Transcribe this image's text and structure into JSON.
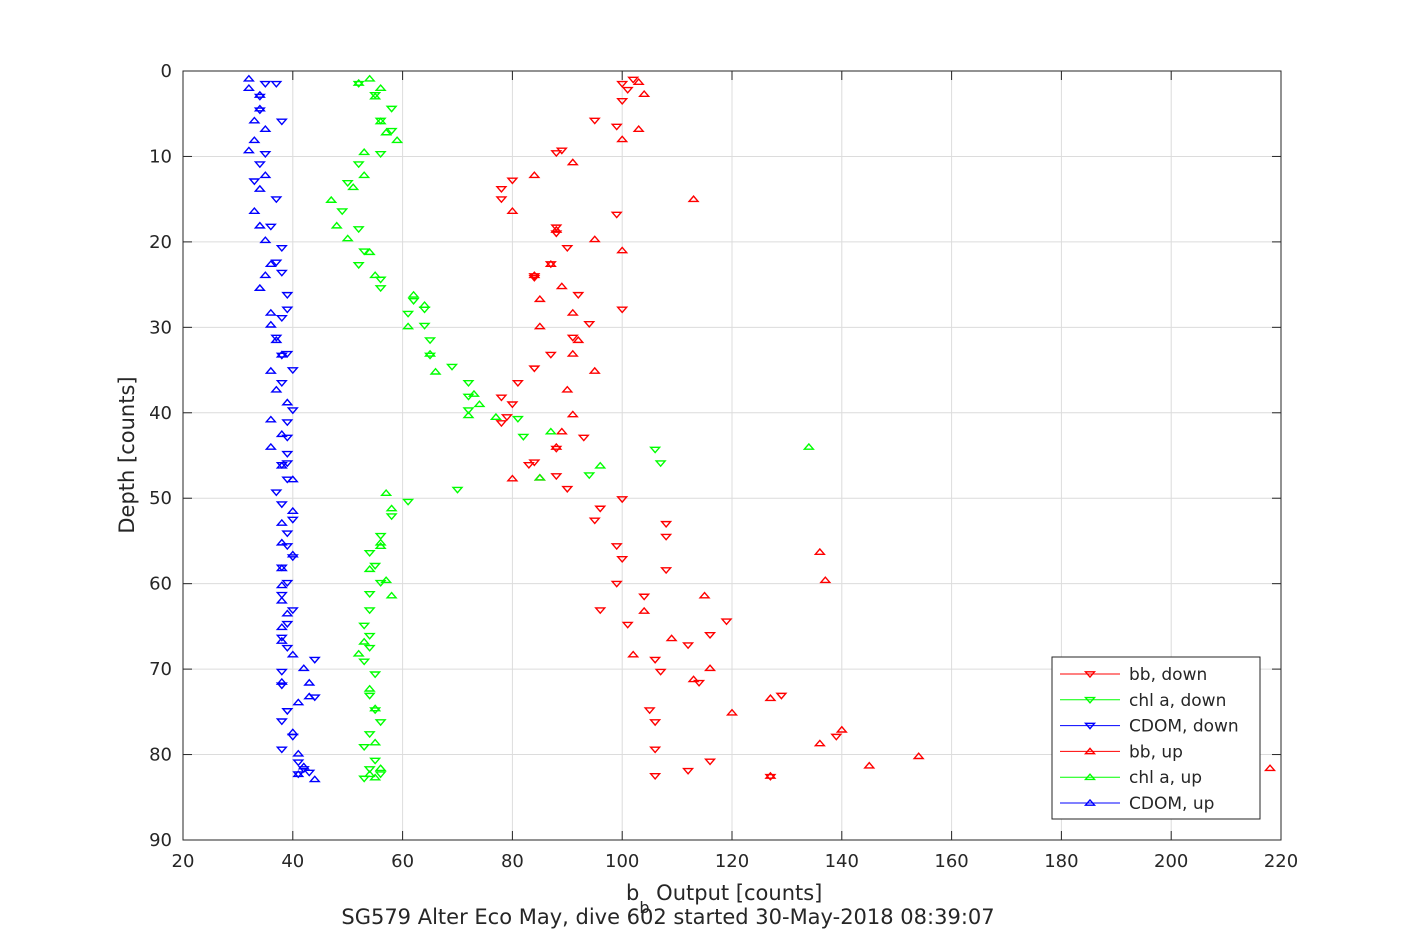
{
  "chart_data": {
    "type": "scatter",
    "xlabel_main": "b",
    "xlabel_sub": "b",
    "xlabel_rest": " Output [counts]",
    "ylabel": "Depth [counts]",
    "caption": "SG579 Alter Eco May, dive 602 started 30-May-2018 08:39:07",
    "xlim": [
      20,
      220
    ],
    "ylim": [
      0,
      90
    ],
    "y_reversed": true,
    "grid": true,
    "xticks": [
      "20",
      "40",
      "60",
      "80",
      "100",
      "120",
      "140",
      "160",
      "180",
      "200",
      "220"
    ],
    "yticks": [
      "0",
      "10",
      "20",
      "30",
      "40",
      "50",
      "60",
      "70",
      "80",
      "90"
    ],
    "legend_position": "bottom-right",
    "series": [
      {
        "name": "bb, down",
        "color": "#ff0000",
        "marker": "down",
        "points": [
          [
            100,
            1.5
          ],
          [
            102,
            1
          ],
          [
            101,
            2.2
          ],
          [
            100,
            3.5
          ],
          [
            99,
            6.5
          ],
          [
            95,
            5.8
          ],
          [
            88,
            9.6
          ],
          [
            89,
            9.3
          ],
          [
            80,
            12.8
          ],
          [
            78,
            13.8
          ],
          [
            78,
            15
          ],
          [
            99,
            16.8
          ],
          [
            88,
            18.3
          ],
          [
            88,
            19
          ],
          [
            90,
            20.7
          ],
          [
            87,
            22.6
          ],
          [
            84,
            24
          ],
          [
            84,
            24.2
          ],
          [
            92,
            26.2
          ],
          [
            100,
            27.9
          ],
          [
            94,
            29.6
          ],
          [
            91,
            31.2
          ],
          [
            87,
            33.2
          ],
          [
            84,
            34.8
          ],
          [
            81,
            36.5
          ],
          [
            78,
            38.2
          ],
          [
            80,
            39
          ],
          [
            79,
            40.5
          ],
          [
            78,
            41.2
          ],
          [
            93,
            42.9
          ],
          [
            88,
            44.2
          ],
          [
            83,
            46.1
          ],
          [
            84,
            45.8
          ],
          [
            88,
            47.4
          ],
          [
            90,
            48.9
          ],
          [
            100,
            50.1
          ],
          [
            96,
            51.2
          ],
          [
            95,
            52.6
          ],
          [
            108,
            53
          ],
          [
            108,
            54.5
          ],
          [
            99,
            55.6
          ],
          [
            100,
            57.1
          ],
          [
            108,
            58.4
          ],
          [
            99,
            60
          ],
          [
            104,
            61.5
          ],
          [
            96,
            63.1
          ],
          [
            101,
            64.8
          ],
          [
            119,
            64.4
          ],
          [
            116,
            66
          ],
          [
            112,
            67.2
          ],
          [
            106,
            68.9
          ],
          [
            107,
            70.3
          ],
          [
            114,
            71.6
          ],
          [
            129,
            73.1
          ],
          [
            105,
            74.8
          ],
          [
            106,
            76.2
          ],
          [
            139,
            77.9
          ],
          [
            106,
            79.4
          ],
          [
            116,
            80.8
          ],
          [
            112,
            81.9
          ],
          [
            106,
            82.5
          ],
          [
            127,
            82.6
          ]
        ]
      },
      {
        "name": "chl a, down",
        "color": "#00ff00",
        "marker": "down",
        "points": [
          [
            52,
            1.5
          ],
          [
            55,
            2.8
          ],
          [
            58,
            4.4
          ],
          [
            56,
            5.8
          ],
          [
            58,
            7
          ],
          [
            56,
            9.7
          ],
          [
            52,
            10.9
          ],
          [
            50,
            13.1
          ],
          [
            49,
            16.4
          ],
          [
            52,
            18.5
          ],
          [
            53,
            21.1
          ],
          [
            52,
            22.7
          ],
          [
            56,
            24.4
          ],
          [
            56,
            25.4
          ],
          [
            62,
            26.9
          ],
          [
            64,
            27.9
          ],
          [
            61,
            28.4
          ],
          [
            64,
            29.8
          ],
          [
            65,
            31.5
          ],
          [
            65,
            33.3
          ],
          [
            69,
            34.6
          ],
          [
            72,
            36.5
          ],
          [
            72,
            38.1
          ],
          [
            72,
            39.7
          ],
          [
            81,
            40.7
          ],
          [
            82,
            42.8
          ],
          [
            106,
            44.3
          ],
          [
            107,
            45.9
          ],
          [
            94,
            47.3
          ],
          [
            70,
            49
          ],
          [
            61,
            50.4
          ],
          [
            58,
            52.1
          ],
          [
            56,
            54.4
          ],
          [
            54,
            56.4
          ],
          [
            55,
            57.9
          ],
          [
            56,
            59.9
          ],
          [
            54,
            61.2
          ],
          [
            54,
            63.1
          ],
          [
            53,
            64.9
          ],
          [
            54,
            66.1
          ],
          [
            54,
            67.5
          ],
          [
            53,
            69.1
          ],
          [
            55,
            70.6
          ],
          [
            54,
            73.1
          ],
          [
            55,
            74.8
          ],
          [
            56,
            76.2
          ],
          [
            54,
            77.6
          ],
          [
            53,
            79.1
          ],
          [
            55,
            80.7
          ],
          [
            54,
            81.7
          ],
          [
            53,
            82.8
          ],
          [
            56,
            82.3
          ]
        ]
      },
      {
        "name": "CDOM, down",
        "color": "#0000ff",
        "marker": "down",
        "points": [
          [
            35,
            1.5
          ],
          [
            37,
            1.5
          ],
          [
            34,
            3
          ],
          [
            34,
            4.6
          ],
          [
            38,
            5.9
          ],
          [
            35,
            9.7
          ],
          [
            34,
            10.9
          ],
          [
            33,
            12.9
          ],
          [
            37,
            15
          ],
          [
            36,
            18.2
          ],
          [
            38,
            20.7
          ],
          [
            37,
            22.4
          ],
          [
            38,
            23.6
          ],
          [
            39,
            26.2
          ],
          [
            39,
            27.9
          ],
          [
            38,
            28.9
          ],
          [
            37,
            31.2
          ],
          [
            39,
            33.1
          ],
          [
            38,
            33.3
          ],
          [
            40,
            35
          ],
          [
            38,
            36.5
          ],
          [
            40,
            39.7
          ],
          [
            39,
            41.1
          ],
          [
            39,
            42.9
          ],
          [
            39,
            44.8
          ],
          [
            39,
            45.9
          ],
          [
            38,
            46.1
          ],
          [
            39,
            47.8
          ],
          [
            37,
            49.3
          ],
          [
            38,
            50.7
          ],
          [
            40,
            52.5
          ],
          [
            39,
            54.1
          ],
          [
            39,
            55.6
          ],
          [
            40,
            56.9
          ],
          [
            38,
            58.1
          ],
          [
            39,
            59.9
          ],
          [
            38,
            61.3
          ],
          [
            40,
            63.1
          ],
          [
            39,
            64.7
          ],
          [
            38,
            66.3
          ],
          [
            39,
            67.5
          ],
          [
            44,
            68.9
          ],
          [
            38,
            70.3
          ],
          [
            38,
            71.9
          ],
          [
            44,
            73.3
          ],
          [
            39,
            74.9
          ],
          [
            38,
            76.1
          ],
          [
            40,
            77.9
          ],
          [
            38,
            79.4
          ],
          [
            41,
            80.9
          ],
          [
            42,
            81.7
          ],
          [
            41,
            82.3
          ],
          [
            43,
            82.1
          ]
        ]
      },
      {
        "name": "bb, up",
        "color": "#ff0000",
        "marker": "up",
        "points": [
          [
            103,
            1.3
          ],
          [
            104,
            2.7
          ],
          [
            103,
            6.8
          ],
          [
            100,
            8
          ],
          [
            91,
            10.7
          ],
          [
            84,
            12.2
          ],
          [
            113,
            15
          ],
          [
            80,
            16.4
          ],
          [
            88,
            18.6
          ],
          [
            95,
            19.7
          ],
          [
            100,
            21
          ],
          [
            87,
            22.6
          ],
          [
            84,
            23.9
          ],
          [
            89,
            25.2
          ],
          [
            85,
            26.7
          ],
          [
            91,
            28.3
          ],
          [
            85,
            29.9
          ],
          [
            92,
            31.5
          ],
          [
            91,
            33.1
          ],
          [
            95,
            35.1
          ],
          [
            90,
            37.3
          ],
          [
            91,
            40.2
          ],
          [
            89,
            42.2
          ],
          [
            88,
            44
          ],
          [
            85,
            47.6
          ],
          [
            80,
            47.7
          ],
          [
            136,
            56.3
          ],
          [
            137,
            59.6
          ],
          [
            115,
            61.4
          ],
          [
            104,
            63.2
          ],
          [
            109,
            66.4
          ],
          [
            102,
            68.3
          ],
          [
            116,
            69.9
          ],
          [
            113,
            71.2
          ],
          [
            127,
            73.4
          ],
          [
            120,
            75.1
          ],
          [
            140,
            77.1
          ],
          [
            136,
            78.7
          ],
          [
            154,
            80.2
          ],
          [
            145,
            81.3
          ],
          [
            218,
            81.6
          ],
          [
            127,
            82.5
          ]
        ]
      },
      {
        "name": "chl a, up",
        "color": "#00ff00",
        "marker": "up",
        "points": [
          [
            54,
            0.9
          ],
          [
            52,
            1.4
          ],
          [
            56,
            2
          ],
          [
            55,
            3
          ],
          [
            56,
            5.9
          ],
          [
            57,
            7.2
          ],
          [
            59,
            8.1
          ],
          [
            53,
            9.5
          ],
          [
            53,
            12.2
          ],
          [
            51,
            13.6
          ],
          [
            47,
            15.1
          ],
          [
            48,
            18.1
          ],
          [
            50,
            19.6
          ],
          [
            54,
            21.2
          ],
          [
            55,
            23.9
          ],
          [
            62,
            26.2
          ],
          [
            64,
            27.4
          ],
          [
            61,
            29.9
          ],
          [
            65,
            33.1
          ],
          [
            66,
            35.2
          ],
          [
            72,
            40.3
          ],
          [
            74,
            39
          ],
          [
            73,
            37.8
          ],
          [
            77,
            40.5
          ],
          [
            85,
            47.6
          ],
          [
            87,
            42.2
          ],
          [
            134,
            44
          ],
          [
            96,
            46.2
          ],
          [
            57,
            49.4
          ],
          [
            58,
            51.2
          ],
          [
            56,
            55.2
          ],
          [
            56,
            55.6
          ],
          [
            54,
            58.3
          ],
          [
            57,
            59.6
          ],
          [
            58,
            61.4
          ],
          [
            53,
            66.8
          ],
          [
            52,
            68.2
          ],
          [
            54,
            72.3
          ],
          [
            55,
            74.6
          ],
          [
            55,
            78.6
          ],
          [
            56,
            81.6
          ],
          [
            54,
            82.3
          ],
          [
            55,
            82.7
          ]
        ]
      },
      {
        "name": "CDOM, up",
        "color": "#0000ff",
        "marker": "up",
        "points": [
          [
            32,
            0.9
          ],
          [
            32,
            2
          ],
          [
            34,
            2.8
          ],
          [
            34,
            4.4
          ],
          [
            33,
            5.8
          ],
          [
            35,
            6.8
          ],
          [
            33,
            8.1
          ],
          [
            32,
            9.3
          ],
          [
            35,
            12.2
          ],
          [
            34,
            13.8
          ],
          [
            33,
            16.4
          ],
          [
            34,
            18.1
          ],
          [
            35,
            19.8
          ],
          [
            36,
            22.6
          ],
          [
            35,
            23.9
          ],
          [
            34,
            25.4
          ],
          [
            36,
            28.3
          ],
          [
            36,
            29.7
          ],
          [
            37,
            31.5
          ],
          [
            38,
            33.2
          ],
          [
            36,
            35.1
          ],
          [
            37,
            37.3
          ],
          [
            39,
            38.8
          ],
          [
            36,
            40.8
          ],
          [
            38,
            42.5
          ],
          [
            36,
            44
          ],
          [
            38,
            46.2
          ],
          [
            40,
            47.8
          ],
          [
            40,
            51.5
          ],
          [
            38,
            52.9
          ],
          [
            38,
            55.2
          ],
          [
            40,
            56.6
          ],
          [
            38,
            58.2
          ],
          [
            38,
            60.2
          ],
          [
            38,
            62
          ],
          [
            39,
            63.5
          ],
          [
            38,
            65.1
          ],
          [
            38,
            66.7
          ],
          [
            40,
            68.3
          ],
          [
            42,
            69.9
          ],
          [
            38,
            71.5
          ],
          [
            43,
            71.6
          ],
          [
            41,
            73.9
          ],
          [
            43,
            73.2
          ],
          [
            40,
            77.4
          ],
          [
            41,
            79.9
          ],
          [
            42,
            81.4
          ],
          [
            41,
            82.3
          ],
          [
            44,
            82.9
          ]
        ]
      }
    ]
  }
}
